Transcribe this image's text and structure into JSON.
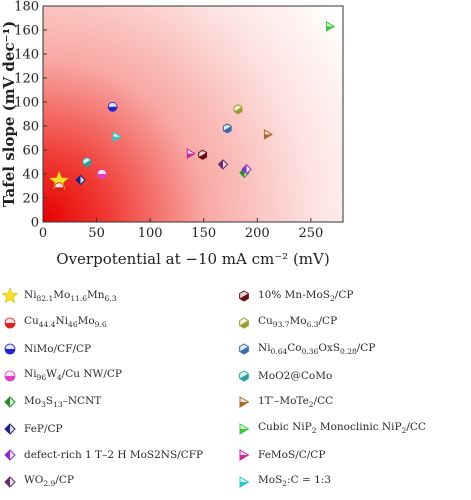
{
  "chart_data": {
    "type": "scatter",
    "xlabel": "Overpotential at −10 mA cm⁻² (mV)",
    "ylabel": "Tafel slope (mV dec⁻¹)",
    "xlim": [
      0,
      280
    ],
    "ylim": [
      0,
      180
    ],
    "xticks": [
      "0",
      "50",
      "100",
      "150",
      "200",
      "250"
    ],
    "yticks": [
      "0",
      "20",
      "40",
      "60",
      "80",
      "100",
      "120",
      "140",
      "160",
      "180"
    ],
    "grid": false,
    "background": "radial red gradient from origin",
    "series": [
      {
        "name": "Ni82.1Mo11.6Mn6.3",
        "marker": "star",
        "color": "#f5e02a",
        "x": 15,
        "y": 34
      },
      {
        "name": "Cu44.4Ni46Mo9.6",
        "marker": "circle",
        "color": "#e02020",
        "x": 15,
        "y": 29
      },
      {
        "name": "NiMo/CF/CP",
        "marker": "circle",
        "color": "#2424c8",
        "x": 65,
        "y": 96
      },
      {
        "name": "Ni96W4/Cu NW/CP",
        "marker": "circle",
        "color": "#e040c8",
        "x": 55,
        "y": 40
      },
      {
        "name": "Mo3S13–NCNT",
        "marker": "diamond",
        "color": "#2a8a2a",
        "x": 188,
        "y": 41
      },
      {
        "name": "FeP/CP",
        "marker": "diamond",
        "color": "#20207a",
        "x": 35,
        "y": 35
      },
      {
        "name": "defect-rich 1 T–2 H MoS2NS/CFP",
        "marker": "diamond",
        "color": "#8a30c8",
        "x": 190,
        "y": 44
      },
      {
        "name": "WO2.9/CP",
        "marker": "diamond",
        "color": "#6a2a6a",
        "x": 168,
        "y": 48
      },
      {
        "name": "10% Mn-MoS2/CP",
        "marker": "hexagon",
        "color": "#6a1010",
        "x": 149,
        "y": 56
      },
      {
        "name": "Cu93.7Mo6.3/CP",
        "marker": "hexagon",
        "color": "#9a9a2a",
        "x": 182,
        "y": 94
      },
      {
        "name": "Ni0.64Co0.36OxS0.28/CP",
        "marker": "hexagon",
        "color": "#3a6aa8",
        "x": 172,
        "y": 78
      },
      {
        "name": "MoO2@CoMo",
        "marker": "hexagon",
        "color": "#2aa0a0",
        "x": 41,
        "y": 50
      },
      {
        "name": "1T′–MoTe2/CC",
        "marker": "triangle",
        "color": "#a86a2a",
        "x": 210,
        "y": 73
      },
      {
        "name": "Cubic NiP2 Monoclinic NiP2/CC",
        "marker": "triangle",
        "color": "#3ac83a",
        "x": 268,
        "y": 163
      },
      {
        "name": "FeMoS/C/CP",
        "marker": "triangle",
        "color": "#c82a9a",
        "x": 138,
        "y": 57
      },
      {
        "name": "MoS2:C = 1:3",
        "marker": "triangle",
        "color": "#2ac8c8",
        "x": 69,
        "y": 71
      }
    ]
  },
  "legend_labels_html": [
    "Ni<sub>82.1</sub>Mo<sub>11.6</sub>Mn<sub>6.3</sub>",
    "Cu<sub>44.4</sub>Ni<sub>46</sub>Mo<sub>9.6</sub>",
    "NiMo/CF/CP",
    "Ni<sub>96</sub>W<sub>4</sub>/Cu NW/CP",
    "Mo<sub>3</sub>S<sub>13</sub>–NCNT",
    "FeP/CP",
    "defect-rich 1 T–2 H MoS2NS/CFP",
    "WO<sub>2.9</sub>/CP",
    "10% Mn-MoS<sub>2</sub>/CP",
    "Cu<sub>93.7</sub>Mo<sub>6.3</sub>/CP",
    "Ni<sub>0.64</sub>Co<sub>0.36</sub>OxS<sub>0.28</sub>/CP",
    "MoO2@CoMo",
    "1T′–MoTe<sub>2</sub>/CC",
    "Cubic NiP<sub>2</sub> Monoclinic NiP<sub>2</sub>/CC",
    "FeMoS/C/CP",
    "MoS<sub>2</sub>:C = 1:3"
  ]
}
